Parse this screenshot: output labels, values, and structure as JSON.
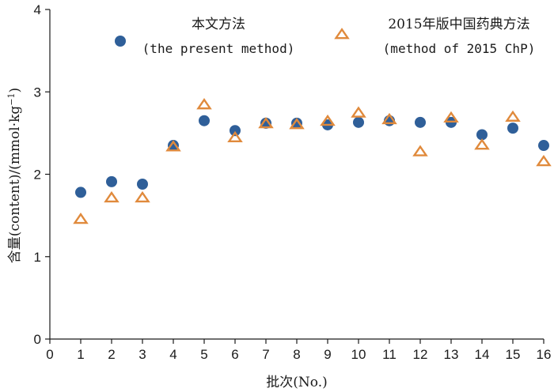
{
  "chart_data": {
    "type": "scatter",
    "xlabel": "批次(No.)",
    "ylabel": "含量(content)/(mmol·kg⁻¹)",
    "ylabel_parts": {
      "main": "含量(content)/(mmol·kg",
      "exp": "−1",
      "close": ")"
    },
    "xlim": [
      0,
      16
    ],
    "ylim": [
      0,
      4
    ],
    "x_ticks": [
      0,
      1,
      2,
      3,
      4,
      5,
      6,
      7,
      8,
      9,
      10,
      11,
      12,
      13,
      14,
      15,
      16
    ],
    "y_ticks": [
      0,
      1,
      2,
      3,
      4
    ],
    "grid": false,
    "legend_position": "top",
    "x": [
      1,
      2,
      3,
      4,
      5,
      6,
      7,
      8,
      9,
      10,
      11,
      12,
      13,
      14,
      15,
      16
    ],
    "series": [
      {
        "name": "本文方法",
        "subtitle": "(the present method)",
        "marker": "circle",
        "color": "#2f5f99",
        "values": [
          1.78,
          1.91,
          1.88,
          2.35,
          2.65,
          2.53,
          2.62,
          2.62,
          2.6,
          2.63,
          2.65,
          2.63,
          2.63,
          2.48,
          2.56,
          2.35
        ]
      },
      {
        "name": "2015年版中国药典方法",
        "subtitle": "(method of 2015 ChP)",
        "marker": "triangle",
        "color": "#e08a3c",
        "values": [
          1.45,
          1.71,
          1.71,
          2.33,
          2.84,
          2.44,
          2.61,
          2.6,
          2.64,
          2.74,
          2.66,
          2.27,
          2.68,
          2.35,
          2.69,
          2.15
        ]
      }
    ]
  }
}
